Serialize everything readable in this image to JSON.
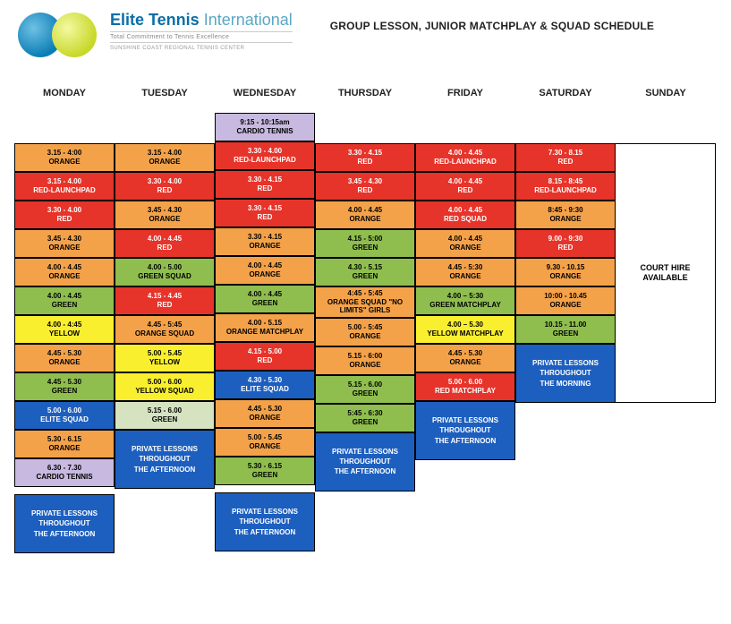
{
  "brand": {
    "line1a": "Elite Tennis",
    "line1b": " International",
    "line2": "Total Commitment to Tennis Excellence",
    "line3": "SUNSHINE COAST REGIONAL TENNIS CENTER"
  },
  "title": "GROUP LESSON, JUNIOR MATCHPLAY & SQUAD SCHEDULE",
  "days": [
    "MONDAY",
    "TUESDAY",
    "WEDNESDAY",
    "THURSDAY",
    "FRIDAY",
    "SATURDAY",
    "SUNDAY"
  ],
  "colors": {
    "orange": "#f4a24a",
    "red": "#e6342a",
    "green": "#8fbe4f",
    "yellow": "#f9ef2f",
    "blue": "#1d5fbf",
    "purple": "#c7b9e0",
    "white": "#ffffff",
    "ltgreen": "#d5e3c0"
  },
  "private_text": [
    "PRIVATE LESSONS",
    "THROUGHOUT",
    "THE AFTERNOON"
  ],
  "private_morning": [
    "PRIVATE LESSONS",
    "THROUGHOUT",
    "THE MORNING"
  ],
  "sunday_text": [
    "COURT HIRE",
    "AVAILABLE"
  ],
  "columns": {
    "mon": [
      {
        "t": "3.15 - 4:00",
        "l": "ORANGE",
        "c": "orange"
      },
      {
        "t": "3.15 - 4.00",
        "l": "RED-LAUNCHPAD",
        "c": "red"
      },
      {
        "t": "3.30 - 4.00",
        "l": "RED",
        "c": "red"
      },
      {
        "t": "3.45 - 4.30",
        "l": "ORANGE",
        "c": "orange"
      },
      {
        "t": "4.00 - 4.45",
        "l": "ORANGE",
        "c": "orange"
      },
      {
        "t": "4.00 - 4.45",
        "l": "GREEN",
        "c": "green"
      },
      {
        "t": "4.00 - 4:45",
        "l": "YELLOW",
        "c": "yellow"
      },
      {
        "t": "4.45 - 5.30",
        "l": "ORANGE",
        "c": "orange"
      },
      {
        "t": "4.45 - 5.30",
        "l": "GREEN",
        "c": "green"
      },
      {
        "t": "5.00 - 6.00",
        "l": "ELITE SQUAD",
        "c": "blue"
      },
      {
        "t": "5.30 - 6.15",
        "l": "ORANGE",
        "c": "orange"
      },
      {
        "t": "6.30 - 7.30",
        "l": "CARDIO TENNIS",
        "c": "purple"
      }
    ],
    "tue": [
      {
        "t": "3.15 - 4.00",
        "l": "ORANGE",
        "c": "orange"
      },
      {
        "t": "3.30 - 4.00",
        "l": "RED",
        "c": "red"
      },
      {
        "t": "3.45 - 4.30",
        "l": "ORANGE",
        "c": "orange"
      },
      {
        "t": "4.00 - 4.45",
        "l": "RED",
        "c": "red"
      },
      {
        "t": "4.00 - 5.00",
        "l": "GREEN SQUAD",
        "c": "green"
      },
      {
        "t": "4.15 - 4.45",
        "l": "RED",
        "c": "red"
      },
      {
        "t": "4.45 - 5:45",
        "l": "ORANGE SQUAD",
        "c": "orange"
      },
      {
        "t": "5.00 - 5.45",
        "l": "YELLOW",
        "c": "yellow"
      },
      {
        "t": "5.00 - 6.00",
        "l": "YELLOW SQUAD",
        "c": "yellow"
      },
      {
        "t": "5.15 - 6.00",
        "l": "GREEN",
        "c": "ltgreen"
      }
    ],
    "wed_pre": {
      "t": "9:15 - 10:15am",
      "l": "CARDIO TENNIS",
      "c": "purple"
    },
    "wed": [
      {
        "t": "3.30 - 4.00",
        "l": "RED-LAUNCHPAD",
        "c": "red"
      },
      {
        "t": "3.30 - 4.15",
        "l": "RED",
        "c": "red"
      },
      {
        "t": "3.30 - 4.15",
        "l": "RED",
        "c": "red"
      },
      {
        "t": "3.30 - 4.15",
        "l": "ORANGE",
        "c": "orange"
      },
      {
        "t": "4.00 - 4.45",
        "l": "ORANGE",
        "c": "orange"
      },
      {
        "t": "4.00 - 4.45",
        "l": "GREEN",
        "c": "green"
      },
      {
        "t": "4.00 - 5.15",
        "l": "ORANGE MATCHPLAY",
        "c": "orange"
      },
      {
        "t": "4.15 - 5.00",
        "l": "RED",
        "c": "red"
      },
      {
        "t": "4.30 - 5.30",
        "l": "ELITE SQUAD",
        "c": "blue"
      },
      {
        "t": "4.45 - 5.30",
        "l": "ORANGE",
        "c": "orange"
      },
      {
        "t": "5.00 - 5.45",
        "l": "ORANGE",
        "c": "orange"
      },
      {
        "t": "5.30 - 6.15",
        "l": "GREEN",
        "c": "green"
      }
    ],
    "thu": [
      {
        "t": "3.30 - 4.15",
        "l": "RED",
        "c": "red"
      },
      {
        "t": "3.45 - 4.30",
        "l": "RED",
        "c": "red"
      },
      {
        "t": "4.00 - 4.45",
        "l": "ORANGE",
        "c": "orange"
      },
      {
        "t": "4.15 - 5:00",
        "l": "GREEN",
        "c": "green"
      },
      {
        "t": "4.30 - 5.15",
        "l": "GREEN",
        "c": "green"
      },
      {
        "t": "4:45 - 5:45",
        "l": "ORANGE SQUAD \"NO LIMITS\" GIRLS",
        "c": "orange"
      },
      {
        "t": "5.00 - 5:45",
        "l": "ORANGE",
        "c": "orange"
      },
      {
        "t": "5.15 - 6:00",
        "l": "ORANGE",
        "c": "orange"
      },
      {
        "t": "5.15 - 6.00",
        "l": "GREEN",
        "c": "green"
      },
      {
        "t": "5:45 - 6:30",
        "l": "GREEN",
        "c": "green"
      }
    ],
    "fri": [
      {
        "t": "4.00 - 4.45",
        "l": "RED-LAUNCHPAD",
        "c": "red"
      },
      {
        "t": "4.00 - 4.45",
        "l": "RED",
        "c": "red"
      },
      {
        "t": "4.00 - 4.45",
        "l": "RED SQUAD",
        "c": "red"
      },
      {
        "t": "4.00 - 4.45",
        "l": "ORANGE",
        "c": "orange"
      },
      {
        "t": "4.45 - 5:30",
        "l": "ORANGE",
        "c": "orange"
      },
      {
        "t": "4.00 – 5:30",
        "l": "GREEN MATCHPLAY",
        "c": "green"
      },
      {
        "t": "4.00 – 5.30",
        "l": "YELLOW MATCHPLAY",
        "c": "yellow"
      },
      {
        "t": "4.45 - 5.30",
        "l": "ORANGE",
        "c": "orange"
      },
      {
        "t": "5.00 - 6.00",
        "l": "RED MATCHPLAY",
        "c": "red"
      }
    ],
    "sat": [
      {
        "t": "7.30 - 8.15",
        "l": "RED",
        "c": "red"
      },
      {
        "t": "8.15 - 8:45",
        "l": "RED-LAUNCHPAD",
        "c": "red"
      },
      {
        "t": "8:45 - 9:30",
        "l": "ORANGE",
        "c": "orange"
      },
      {
        "t": "9.00 - 9:30",
        "l": "RED",
        "c": "red"
      },
      {
        "t": "9.30 - 10.15",
        "l": "ORANGE",
        "c": "orange"
      },
      {
        "t": "10:00 - 10.45",
        "l": "ORANGE",
        "c": "orange"
      },
      {
        "t": "10.15 - 11.00",
        "l": "GREEN",
        "c": "green"
      }
    ]
  }
}
